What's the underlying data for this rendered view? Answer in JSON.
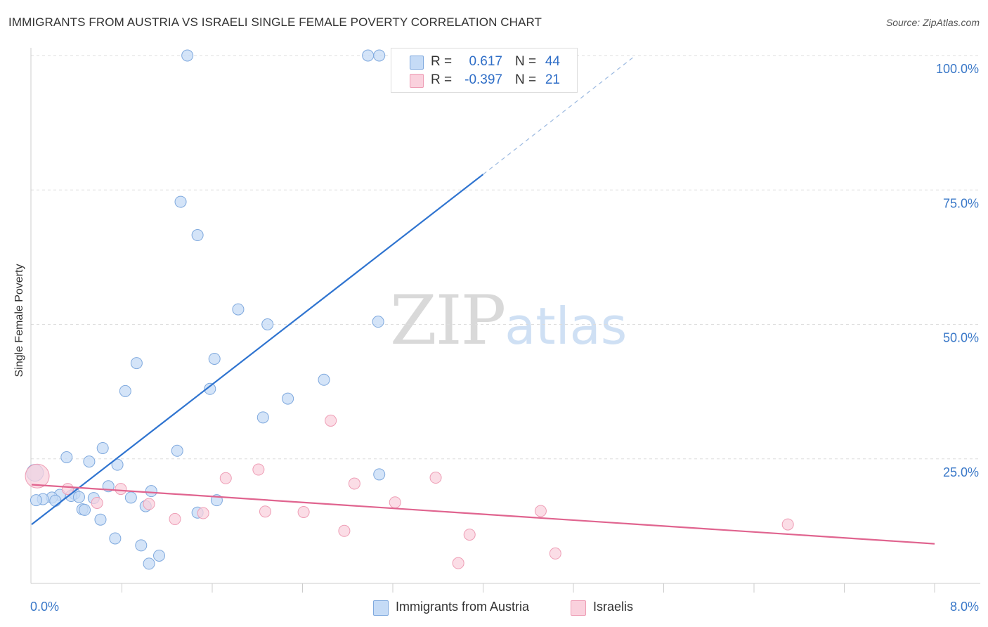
{
  "title": "IMMIGRANTS FROM AUSTRIA VS ISRAELI SINGLE FEMALE POVERTY CORRELATION CHART",
  "source": "Source: ZipAtlas.com",
  "watermark": {
    "zip": "ZIP",
    "atlas": "atlas"
  },
  "legend": [
    {
      "r_label": "R =",
      "r_value": "0.617",
      "n_label": "N =",
      "n_value": "44",
      "color": "#a8c8f0"
    },
    {
      "r_label": "R =",
      "r_value": "-0.397",
      "n_label": "N =",
      "n_value": "21",
      "color": "#f7b8cb"
    }
  ],
  "bottom_legend": [
    "Immigrants from Austria",
    "Israelis"
  ],
  "chart_data": {
    "type": "scatter",
    "xlabel": "",
    "ylabel": "Single Female Poverty",
    "xlim": [
      0,
      8
    ],
    "ylim": [
      0,
      100
    ],
    "x_tick_labels": [
      "0.0%",
      "8.0%"
    ],
    "y_tick_labels": [
      "100.0%",
      "75.0%",
      "50.0%",
      "25.0%"
    ],
    "y_ticks": [
      100,
      75,
      50,
      25
    ],
    "colors": {
      "austria_fill": "#c5dbf6",
      "austria_stroke": "#7fa9de",
      "austria_line": "#2f74d0",
      "israeli_fill": "#fad1dd",
      "israeli_stroke": "#ee9db5",
      "israeli_line": "#e0648f",
      "axis_text": "#3a78c8"
    },
    "series": [
      {
        "name": "Immigrants from Austria",
        "points": [
          [
            1.38,
            100.0
          ],
          [
            2.98,
            100.0
          ],
          [
            3.08,
            100.0
          ],
          [
            1.32,
            72.8
          ],
          [
            1.47,
            66.6
          ],
          [
            1.83,
            52.8
          ],
          [
            2.09,
            50.0
          ],
          [
            3.07,
            50.5
          ],
          [
            0.93,
            42.8
          ],
          [
            1.62,
            43.6
          ],
          [
            0.83,
            37.6
          ],
          [
            1.58,
            38.0
          ],
          [
            2.59,
            39.7
          ],
          [
            2.27,
            36.2
          ],
          [
            2.05,
            32.7
          ],
          [
            0.63,
            27.0
          ],
          [
            1.29,
            26.5
          ],
          [
            0.31,
            25.3
          ],
          [
            0.51,
            24.5
          ],
          [
            0.76,
            23.9
          ],
          [
            3.08,
            22.1
          ],
          [
            0.03,
            22.4
          ],
          [
            0.68,
            19.9
          ],
          [
            1.06,
            19.0
          ],
          [
            0.38,
            18.5
          ],
          [
            0.25,
            18.3
          ],
          [
            0.35,
            18.1
          ],
          [
            0.18,
            17.8
          ],
          [
            0.42,
            17.9
          ],
          [
            0.55,
            17.7
          ],
          [
            0.88,
            17.8
          ],
          [
            0.1,
            17.5
          ],
          [
            0.21,
            17.2
          ],
          [
            1.64,
            17.3
          ],
          [
            0.04,
            17.3
          ],
          [
            1.01,
            16.2
          ],
          [
            0.45,
            15.6
          ],
          [
            0.47,
            15.5
          ],
          [
            1.47,
            15.0
          ],
          [
            0.61,
            13.7
          ],
          [
            0.74,
            10.2
          ],
          [
            0.97,
            8.9
          ],
          [
            1.13,
            7.0
          ],
          [
            1.04,
            5.5
          ]
        ]
      },
      {
        "name": "Israelis",
        "points": [
          [
            2.65,
            32.1
          ],
          [
            2.01,
            23.0
          ],
          [
            0.05,
            21.8
          ],
          [
            1.72,
            21.4
          ],
          [
            3.58,
            21.5
          ],
          [
            2.86,
            20.4
          ],
          [
            0.32,
            19.4
          ],
          [
            0.79,
            19.4
          ],
          [
            1.04,
            16.6
          ],
          [
            0.58,
            16.8
          ],
          [
            3.22,
            16.9
          ],
          [
            2.07,
            15.2
          ],
          [
            2.41,
            15.1
          ],
          [
            4.51,
            15.3
          ],
          [
            1.52,
            14.9
          ],
          [
            1.27,
            13.8
          ],
          [
            2.77,
            11.6
          ],
          [
            3.88,
            10.9
          ],
          [
            6.7,
            12.8
          ],
          [
            4.64,
            7.4
          ],
          [
            3.78,
            5.6
          ]
        ]
      }
    ],
    "trendlines": [
      {
        "series": "Immigrants from Austria",
        "x": [
          0.0,
          4.0
        ],
        "y": [
          12.8,
          77.9
        ],
        "dashed_extension_x": [
          4.0,
          5.35
        ],
        "dashed_extension_y": [
          77.9,
          100.0
        ]
      },
      {
        "series": "Israelis",
        "x": [
          0.0,
          8.0
        ],
        "y": [
          20.2,
          9.2
        ]
      }
    ],
    "grid": true,
    "legend_position": "top-center"
  }
}
